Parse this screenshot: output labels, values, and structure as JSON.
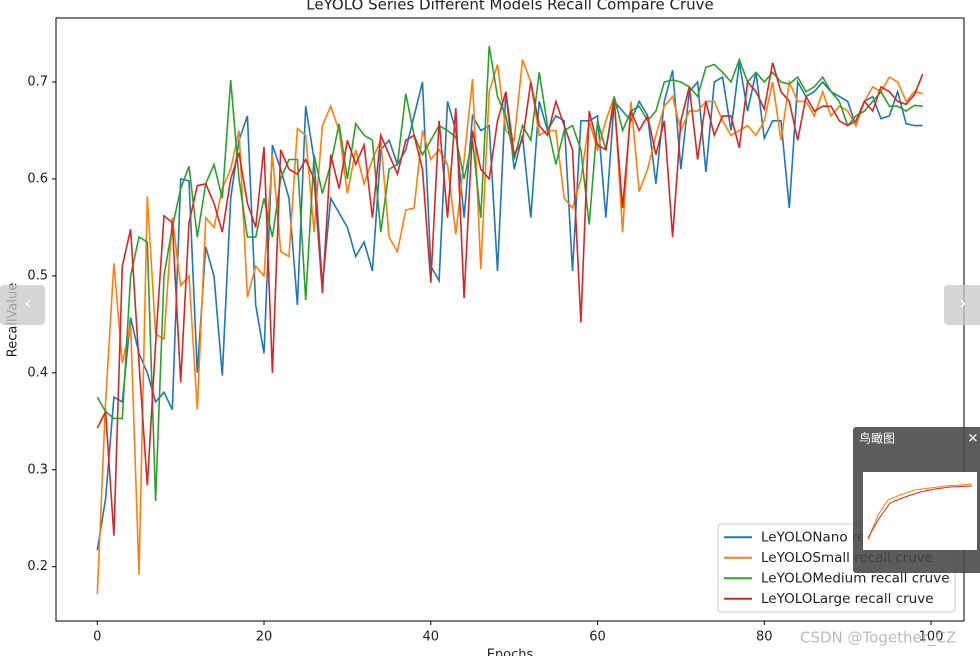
{
  "chart_data": {
    "type": "line",
    "title": "LeYOLO Series Different Models Recall Compare Cruve",
    "x_label": "Epochs",
    "y_label": "RecallValue",
    "x": [
      0,
      1,
      2,
      3,
      4,
      5,
      6,
      7,
      8,
      9,
      10,
      11,
      12,
      13,
      14,
      15,
      16,
      17,
      18,
      19,
      20,
      21,
      22,
      23,
      24,
      25,
      26,
      27,
      28,
      29,
      30,
      31,
      32,
      33,
      34,
      35,
      36,
      37,
      38,
      39,
      40,
      41,
      42,
      43,
      44,
      45,
      46,
      47,
      48,
      49,
      50,
      51,
      52,
      53,
      54,
      55,
      56,
      57,
      58,
      59,
      60,
      61,
      62,
      63,
      64,
      65,
      66,
      67,
      68,
      69,
      70,
      71,
      72,
      73,
      74,
      75,
      76,
      77,
      78,
      79,
      80,
      81,
      82,
      83,
      84,
      85,
      86,
      87,
      88,
      89,
      90,
      91,
      92,
      93,
      94,
      95,
      96,
      97,
      98,
      99
    ],
    "series": [
      {
        "name": "LeYOLONano recall cruve",
        "color": "#1f77b4",
        "values": [
          0.217,
          0.27,
          0.375,
          0.37,
          0.457,
          0.42,
          0.4,
          0.37,
          0.38,
          0.362,
          0.6,
          0.598,
          0.4,
          0.53,
          0.5,
          0.397,
          0.58,
          0.64,
          0.665,
          0.47,
          0.42,
          0.635,
          0.61,
          0.58,
          0.47,
          0.675,
          0.62,
          0.49,
          0.58,
          0.565,
          0.55,
          0.52,
          0.535,
          0.505,
          0.63,
          0.64,
          0.615,
          0.63,
          0.665,
          0.7,
          0.51,
          0.495,
          0.68,
          0.65,
          0.56,
          0.665,
          0.65,
          0.655,
          0.505,
          0.69,
          0.61,
          0.645,
          0.56,
          0.68,
          0.65,
          0.665,
          0.66,
          0.505,
          0.66,
          0.66,
          0.665,
          0.56,
          0.68,
          0.67,
          0.66,
          0.68,
          0.665,
          0.595,
          0.68,
          0.712,
          0.61,
          0.69,
          0.7,
          0.607,
          0.7,
          0.705,
          0.65,
          0.72,
          0.67,
          0.71,
          0.642,
          0.66,
          0.66,
          0.57,
          0.7,
          0.685,
          0.69,
          0.7,
          0.69,
          0.685,
          0.68,
          0.655,
          0.68,
          0.685,
          0.662,
          0.665,
          0.69,
          0.657,
          0.655,
          0.655
        ]
      },
      {
        "name": "LeYOLOSmall recall cruve",
        "color": "#ff7f0e",
        "values": [
          0.172,
          0.37,
          0.513,
          0.41,
          0.45,
          0.192,
          0.582,
          0.44,
          0.435,
          0.56,
          0.49,
          0.5,
          0.362,
          0.56,
          0.55,
          0.59,
          0.61,
          0.65,
          0.478,
          0.51,
          0.5,
          0.625,
          0.525,
          0.52,
          0.652,
          0.645,
          0.545,
          0.655,
          0.675,
          0.65,
          0.585,
          0.63,
          0.595,
          0.62,
          0.64,
          0.54,
          0.525,
          0.568,
          0.57,
          0.65,
          0.62,
          0.63,
          0.615,
          0.543,
          0.62,
          0.703,
          0.507,
          0.69,
          0.718,
          0.65,
          0.64,
          0.723,
          0.7,
          0.645,
          0.65,
          0.65,
          0.58,
          0.57,
          0.6,
          0.66,
          0.63,
          0.66,
          0.685,
          0.545,
          0.68,
          0.587,
          0.61,
          0.645,
          0.675,
          0.685,
          0.65,
          0.67,
          0.67,
          0.68,
          0.68,
          0.66,
          0.645,
          0.65,
          0.655,
          0.645,
          0.66,
          0.7,
          0.64,
          0.7,
          0.68,
          0.68,
          0.665,
          0.69,
          0.665,
          0.675,
          0.67,
          0.655,
          0.68,
          0.695,
          0.69,
          0.705,
          0.7,
          0.68,
          0.69,
          0.688
        ]
      },
      {
        "name": "LeYOLOMedium recall cruve",
        "color": "#2ca02c",
        "values": [
          0.375,
          0.36,
          0.353,
          0.353,
          0.5,
          0.54,
          0.535,
          0.268,
          0.5,
          0.55,
          0.59,
          0.613,
          0.54,
          0.595,
          0.615,
          0.58,
          0.702,
          0.6,
          0.54,
          0.54,
          0.58,
          0.54,
          0.6,
          0.62,
          0.62,
          0.475,
          0.625,
          0.585,
          0.615,
          0.657,
          0.6,
          0.657,
          0.645,
          0.64,
          0.545,
          0.61,
          0.615,
          0.688,
          0.645,
          0.625,
          0.64,
          0.655,
          0.65,
          0.643,
          0.6,
          0.64,
          0.56,
          0.737,
          0.685,
          0.665,
          0.62,
          0.655,
          0.64,
          0.71,
          0.655,
          0.615,
          0.65,
          0.655,
          0.63,
          0.553,
          0.66,
          0.63,
          0.685,
          0.65,
          0.67,
          0.675,
          0.66,
          0.67,
          0.7,
          0.702,
          0.7,
          0.695,
          0.685,
          0.715,
          0.718,
          0.71,
          0.7,
          0.723,
          0.7,
          0.71,
          0.7,
          0.71,
          0.7,
          0.698,
          0.705,
          0.69,
          0.695,
          0.705,
          0.69,
          0.68,
          0.655,
          0.665,
          0.67,
          0.68,
          0.69,
          0.675,
          0.675,
          0.67,
          0.676,
          0.675
        ]
      },
      {
        "name": "LeYOLOLarge recall cruve",
        "color": "#d62728",
        "values": [
          0.343,
          0.36,
          0.232,
          0.51,
          0.548,
          0.41,
          0.284,
          0.43,
          0.562,
          0.555,
          0.39,
          0.555,
          0.593,
          0.595,
          0.575,
          0.545,
          0.6,
          0.627,
          0.575,
          0.55,
          0.633,
          0.4,
          0.63,
          0.61,
          0.605,
          0.62,
          0.6,
          0.482,
          0.625,
          0.59,
          0.64,
          0.615,
          0.635,
          0.56,
          0.645,
          0.625,
          0.605,
          0.64,
          0.645,
          0.61,
          0.493,
          0.66,
          0.56,
          0.673,
          0.477,
          0.65,
          0.61,
          0.6,
          0.66,
          0.69,
          0.625,
          0.64,
          0.7,
          0.655,
          0.645,
          0.68,
          0.655,
          0.63,
          0.452,
          0.67,
          0.635,
          0.63,
          0.68,
          0.57,
          0.67,
          0.65,
          0.665,
          0.625,
          0.66,
          0.54,
          0.66,
          0.695,
          0.62,
          0.68,
          0.645,
          0.665,
          0.665,
          0.632,
          0.7,
          0.69,
          0.672,
          0.72,
          0.69,
          0.68,
          0.64,
          0.685,
          0.67,
          0.675,
          0.675,
          0.66,
          0.655,
          0.66,
          0.68,
          0.67,
          0.695,
          0.69,
          0.68,
          0.677,
          0.687,
          0.708
        ]
      }
    ],
    "xlim": [
      -4.95,
      103.95
    ],
    "xticks": [
      0,
      20,
      40,
      60,
      80,
      100
    ],
    "ylim": [
      0.144,
      0.766
    ],
    "yticks": [
      0.2,
      0.3,
      0.4,
      0.5,
      0.6,
      0.7
    ],
    "grid": false,
    "legend": "lower right"
  },
  "overlay": {
    "prev_button": "‹",
    "next_button": "›",
    "overview_title": "鸟瞰图",
    "close_button": "✕",
    "watermark": "CSDN @Together_CZ"
  }
}
